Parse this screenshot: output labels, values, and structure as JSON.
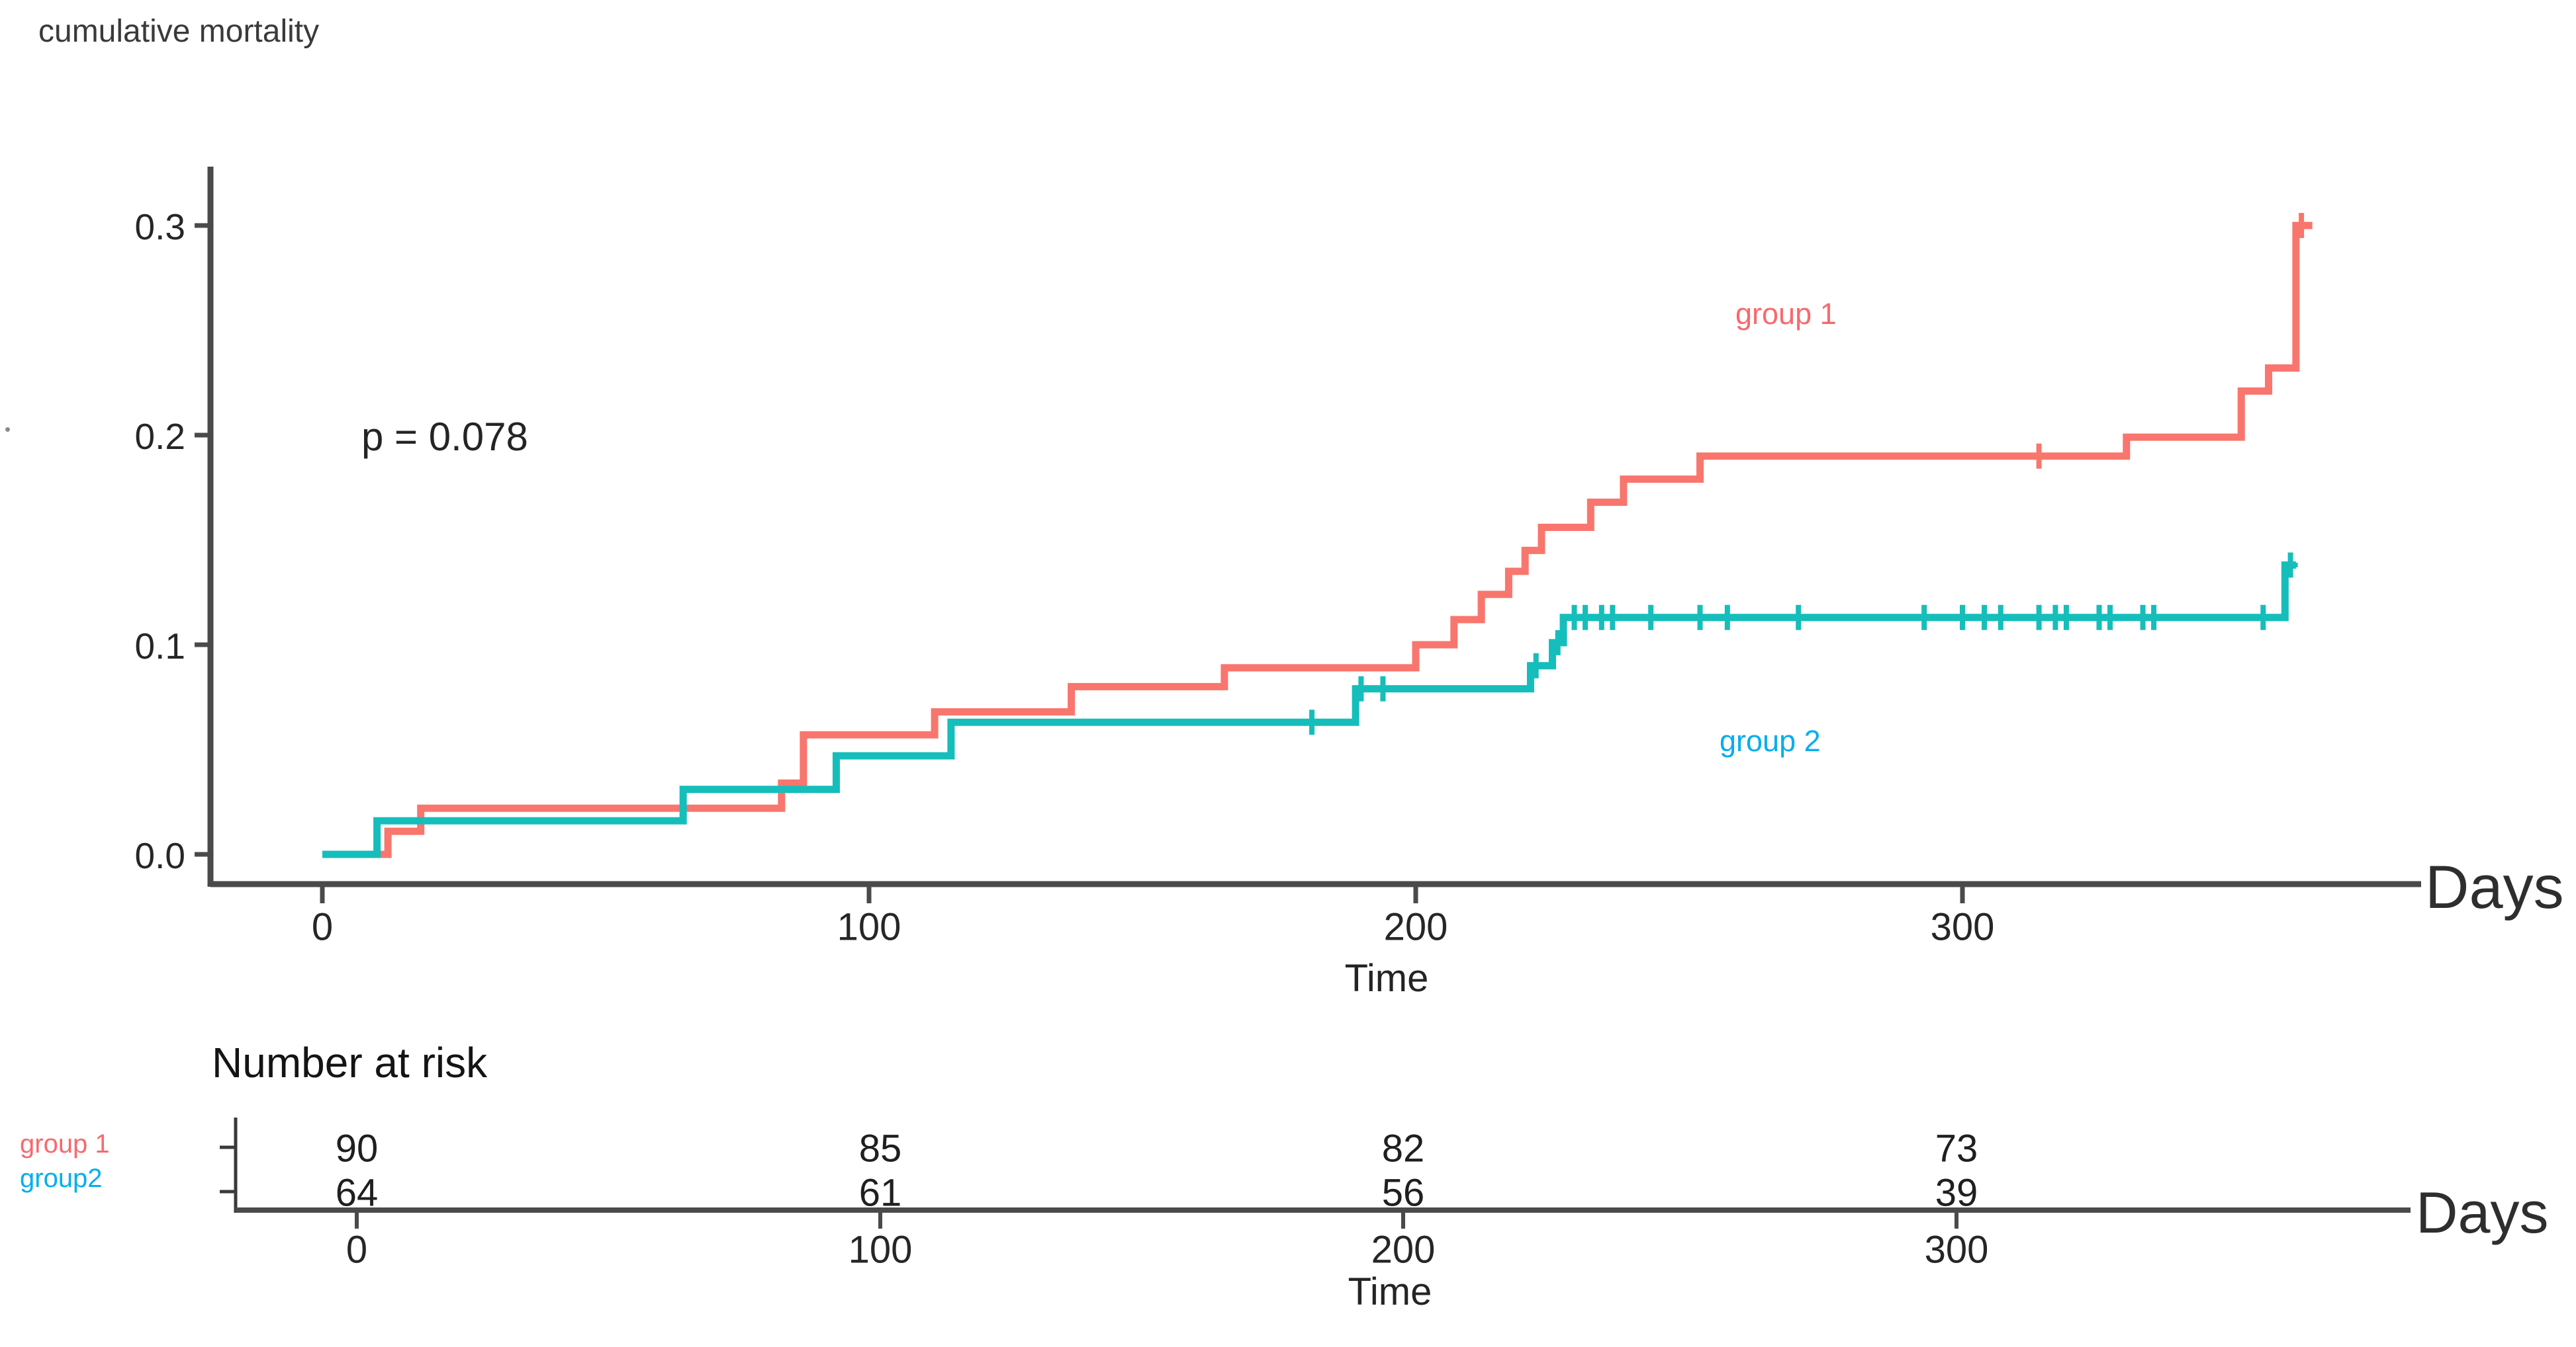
{
  "chart_data": {
    "type": "line",
    "subtype": "kaplan-meier-cumulative-incidence-step",
    "title": "cumulative mortality",
    "xlabel": "Time",
    "x_unit_label": "Days",
    "ylabel": "cumulative mortality",
    "xlim": [
      0,
      372
    ],
    "ylim": [
      0,
      0.31
    ],
    "x_ticks": [
      0,
      100,
      200,
      300
    ],
    "y_ticks": [
      0.0,
      0.1,
      0.2,
      0.3
    ],
    "y_tick_labels": [
      "0.0",
      "0.1",
      "0.2",
      "0.3"
    ],
    "grid": "off",
    "legend_position": "annotated-on-plot",
    "p_value_text": "p = 0.078",
    "series": [
      {
        "name": "group 1",
        "color": "#F8766D",
        "label_color": "#F8696D",
        "end_day": 364,
        "steps": [
          [
            0,
            0
          ],
          [
            12,
            0.011
          ],
          [
            18,
            0.022
          ],
          [
            84,
            0.034
          ],
          [
            88,
            0.057
          ],
          [
            112,
            0.068
          ],
          [
            137,
            0.08
          ],
          [
            165,
            0.089
          ],
          [
            200,
            0.1
          ],
          [
            207,
            0.112
          ],
          [
            212,
            0.124
          ],
          [
            217,
            0.135
          ],
          [
            220,
            0.145
          ],
          [
            223,
            0.156
          ],
          [
            232,
            0.168
          ],
          [
            238,
            0.179
          ],
          [
            252,
            0.19
          ],
          [
            330,
            0.199
          ],
          [
            351,
            0.221
          ],
          [
            356,
            0.232
          ],
          [
            361,
            0.3
          ]
        ],
        "censor_days": [
          314,
          362
        ]
      },
      {
        "name": "group 2",
        "color": "#15BEBB",
        "label_color": "#00AEEF",
        "end_day": 361,
        "steps": [
          [
            0,
            0
          ],
          [
            10,
            0.016
          ],
          [
            66,
            0.031
          ],
          [
            94,
            0.047
          ],
          [
            115,
            0.063
          ],
          [
            189,
            0.079
          ],
          [
            221,
            0.09
          ],
          [
            225,
            0.101
          ],
          [
            227,
            0.113
          ],
          [
            359,
            0.138
          ]
        ],
        "censor_days": [
          181,
          190,
          194,
          222,
          226,
          229,
          231,
          234,
          236,
          243,
          252,
          257,
          270,
          293,
          300,
          304,
          307,
          314,
          317,
          319,
          325,
          327,
          333,
          335,
          355,
          360
        ]
      }
    ],
    "number_at_risk": {
      "heading": "Number at risk",
      "x_label": "Time",
      "x_unit_label": "Days",
      "x_ticks": [
        0,
        100,
        200,
        300
      ],
      "rows": [
        {
          "label": "group 1",
          "label_color": "#F8696D",
          "values": [
            "90",
            "85",
            "82",
            "73"
          ]
        },
        {
          "label": "group2",
          "label_color": "#00AEEF",
          "values": [
            "64",
            "61",
            "56",
            "39"
          ]
        }
      ]
    }
  },
  "colors": {
    "axis": "#4a4a4a",
    "tick_text": "#262626",
    "group1_curve": "#F8766D",
    "group2_curve": "#15BEBB",
    "group1_text": "#F8696D",
    "group2_text": "#00AEEF"
  }
}
